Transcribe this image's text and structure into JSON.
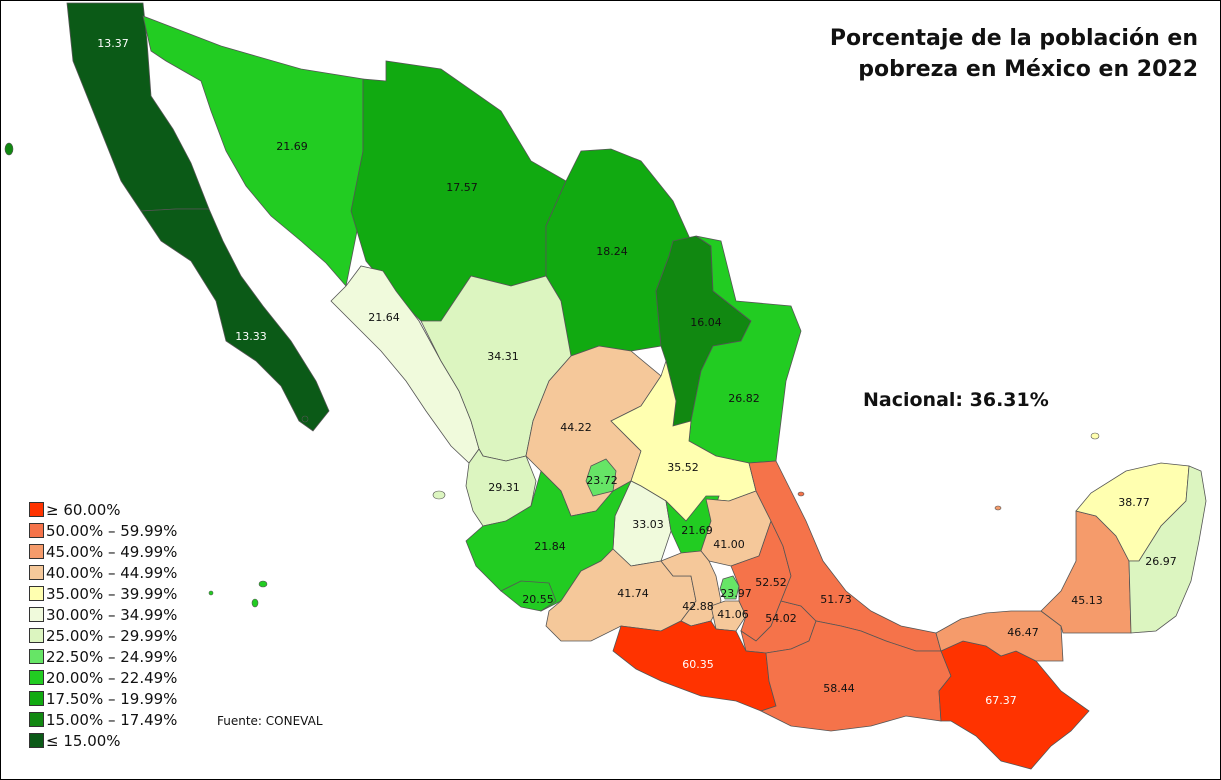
{
  "title": {
    "line1": "Porcentaje de la población en",
    "line2": "pobreza en México en 2022"
  },
  "national": "Nacional: 36.31%",
  "source": "Fuente: CONEVAL",
  "legend": [
    {
      "label": "≥ 60.00%",
      "color": "#ff3300"
    },
    {
      "label": "50.00% – 59.99%",
      "color": "#f5734a"
    },
    {
      "label": "45.00% – 49.99%",
      "color": "#f59b6b"
    },
    {
      "label": "40.00% – 44.99%",
      "color": "#f5c89a"
    },
    {
      "label": "35.00% – 39.99%",
      "color": "#ffffb0"
    },
    {
      "label": "30.00% – 34.99%",
      "color": "#f0fadc"
    },
    {
      "label": "25.00% – 29.99%",
      "color": "#dcf5c0"
    },
    {
      "label": "22.50% – 24.99%",
      "color": "#66e566"
    },
    {
      "label": "20.00% – 22.49%",
      "color": "#22cc22"
    },
    {
      "label": "17.50% – 19.99%",
      "color": "#11aa11"
    },
    {
      "label": "15.00% – 17.49%",
      "color": "#118811"
    },
    {
      "label": "≤ 15.00%",
      "color": "#0b5a17"
    }
  ],
  "states": [
    {
      "value": "13.37",
      "color": "#0b5a17",
      "label_color": "#ffffff"
    },
    {
      "value": "13.33",
      "color": "#0b5a17",
      "label_color": "#ffffff"
    },
    {
      "value": "21.69",
      "color": "#22cc22",
      "label_color": "#111111"
    },
    {
      "value": "17.57",
      "color": "#11aa11",
      "label_color": "#111111"
    },
    {
      "value": "18.24",
      "color": "#11aa11",
      "label_color": "#111111"
    },
    {
      "value": "16.04",
      "color": "#118811",
      "label_color": "#111111"
    },
    {
      "value": "21.64",
      "color": "#22cc22",
      "label_color": "#111111"
    },
    {
      "value": "34.31",
      "color": "#f0fadc",
      "label_color": "#111111"
    },
    {
      "value": "26.82",
      "color": "#dcf5c0",
      "label_color": "#111111"
    },
    {
      "value": "44.22",
      "color": "#f5c89a",
      "label_color": "#111111"
    },
    {
      "value": "35.52",
      "color": "#ffffb0",
      "label_color": "#111111"
    },
    {
      "value": "29.31",
      "color": "#dcf5c0",
      "label_color": "#111111"
    },
    {
      "value": "23.72",
      "color": "#66e566",
      "label_color": "#111111"
    },
    {
      "value": "33.03",
      "color": "#f0fadc",
      "label_color": "#111111"
    },
    {
      "value": "21.69",
      "color": "#22cc22",
      "label_color": "#111111"
    },
    {
      "value": "41.00",
      "color": "#f5c89a",
      "label_color": "#111111"
    },
    {
      "value": "21.84",
      "color": "#22cc22",
      "label_color": "#111111"
    },
    {
      "value": "20.55",
      "color": "#22cc22",
      "label_color": "#111111"
    },
    {
      "value": "41.74",
      "color": "#f5c89a",
      "label_color": "#111111"
    },
    {
      "value": "42.88",
      "color": "#f5c89a",
      "label_color": "#111111"
    },
    {
      "value": "23.97",
      "color": "#66e566",
      "label_color": "#111111"
    },
    {
      "value": "41.06",
      "color": "#f5c89a",
      "label_color": "#111111"
    },
    {
      "value": "52.52",
      "color": "#f5734a",
      "label_color": "#111111"
    },
    {
      "value": "54.02",
      "color": "#f5734a",
      "label_color": "#111111"
    },
    {
      "value": "51.73",
      "color": "#f5734a",
      "label_color": "#111111"
    },
    {
      "value": "60.35",
      "color": "#ff3300",
      "label_color": "#ffffff"
    },
    {
      "value": "58.44",
      "color": "#f5734a",
      "label_color": "#111111"
    },
    {
      "value": "67.37",
      "color": "#ff3300",
      "label_color": "#ffffff"
    },
    {
      "value": "46.47",
      "color": "#f59b6b",
      "label_color": "#111111"
    },
    {
      "value": "45.13",
      "color": "#f59b6b",
      "label_color": "#111111"
    },
    {
      "value": "38.77",
      "color": "#ffffb0",
      "label_color": "#111111"
    },
    {
      "value": "26.97",
      "color": "#dcf5c0",
      "label_color": "#111111"
    }
  ]
}
